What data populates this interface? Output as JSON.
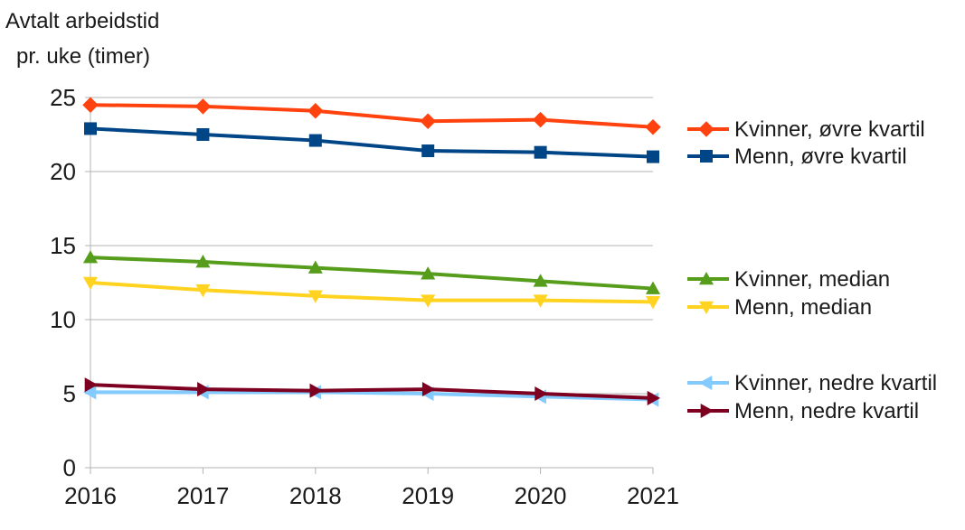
{
  "chart_data": {
    "type": "line",
    "title": "",
    "ylabel": [
      "Avtalt arbeidstid",
      "pr. uke (timer)"
    ],
    "xlabel": "",
    "x": [
      "2016",
      "2017",
      "2018",
      "2019",
      "2020",
      "2021"
    ],
    "ylim": [
      0,
      25
    ],
    "yticks": [
      0,
      5,
      10,
      15,
      20,
      25
    ],
    "grid": true,
    "legend_position": "right",
    "series": [
      {
        "name": "Kvinner, øvre kvartil",
        "color": "#ff420e",
        "marker": "diamond",
        "values": [
          24.5,
          24.4,
          24.1,
          23.4,
          23.5,
          23.0
        ]
      },
      {
        "name": "Menn, øvre kvartil",
        "color": "#004586",
        "marker": "square",
        "values": [
          22.9,
          22.5,
          22.1,
          21.4,
          21.3,
          21.0
        ]
      },
      {
        "name": "Kvinner, median",
        "color": "#579d1c",
        "marker": "triangle-up",
        "values": [
          14.2,
          13.9,
          13.5,
          13.1,
          12.6,
          12.1
        ]
      },
      {
        "name": "Menn, median",
        "color": "#ffd320",
        "marker": "triangle-down",
        "values": [
          12.5,
          12.0,
          11.6,
          11.3,
          11.3,
          11.2
        ]
      },
      {
        "name": "Kvinner, nedre kvartil",
        "color": "#83caff",
        "marker": "triangle-left",
        "values": [
          5.1,
          5.1,
          5.1,
          5.0,
          4.8,
          4.6
        ]
      },
      {
        "name": "Menn, nedre kvartil",
        "color": "#7e0021",
        "marker": "triangle-right",
        "values": [
          5.6,
          5.3,
          5.2,
          5.3,
          5.0,
          4.7
        ]
      }
    ]
  }
}
